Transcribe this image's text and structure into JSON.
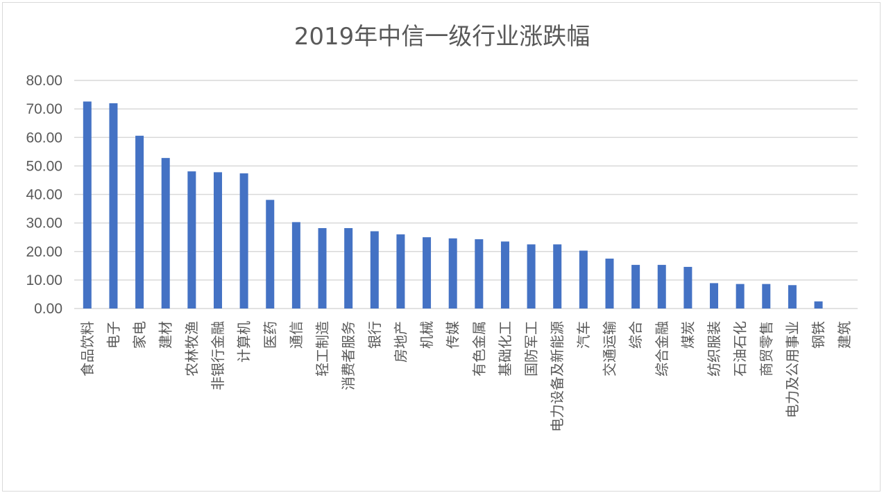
{
  "chart_data": {
    "type": "bar",
    "title": "2019年中信一级行业涨跌幅",
    "xlabel": "",
    "ylabel": "",
    "ylim": [
      0,
      80
    ],
    "yticks": [
      "0.00",
      "10.00",
      "20.00",
      "30.00",
      "40.00",
      "50.00",
      "60.00",
      "70.00",
      "80.00"
    ],
    "grid": true,
    "legend": "none",
    "bar_color": "#4472c4",
    "categories": [
      "食品饮料",
      "电子",
      "家电",
      "建材",
      "农林牧渔",
      "非银行金融",
      "计算机",
      "医药",
      "通信",
      "轻工制造",
      "消费者服务",
      "银行",
      "房地产",
      "机械",
      "传媒",
      "有色金属",
      "基础化工",
      "国防军工",
      "电力设备及新能源",
      "汽车",
      "交通运输",
      "综合",
      "综合金融",
      "煤炭",
      "纺织服装",
      "石油石化",
      "商贸零售",
      "电力及公用事业",
      "钢铁",
      "建筑"
    ],
    "values": [
      72.6,
      72.0,
      60.6,
      52.8,
      48.1,
      47.8,
      47.4,
      38.1,
      30.3,
      28.2,
      28.2,
      27.1,
      26.0,
      25.0,
      24.6,
      24.3,
      23.5,
      22.5,
      22.5,
      20.3,
      17.5,
      15.3,
      15.3,
      14.6,
      8.9,
      8.6,
      8.6,
      8.2,
      2.5,
      0.0
    ]
  }
}
